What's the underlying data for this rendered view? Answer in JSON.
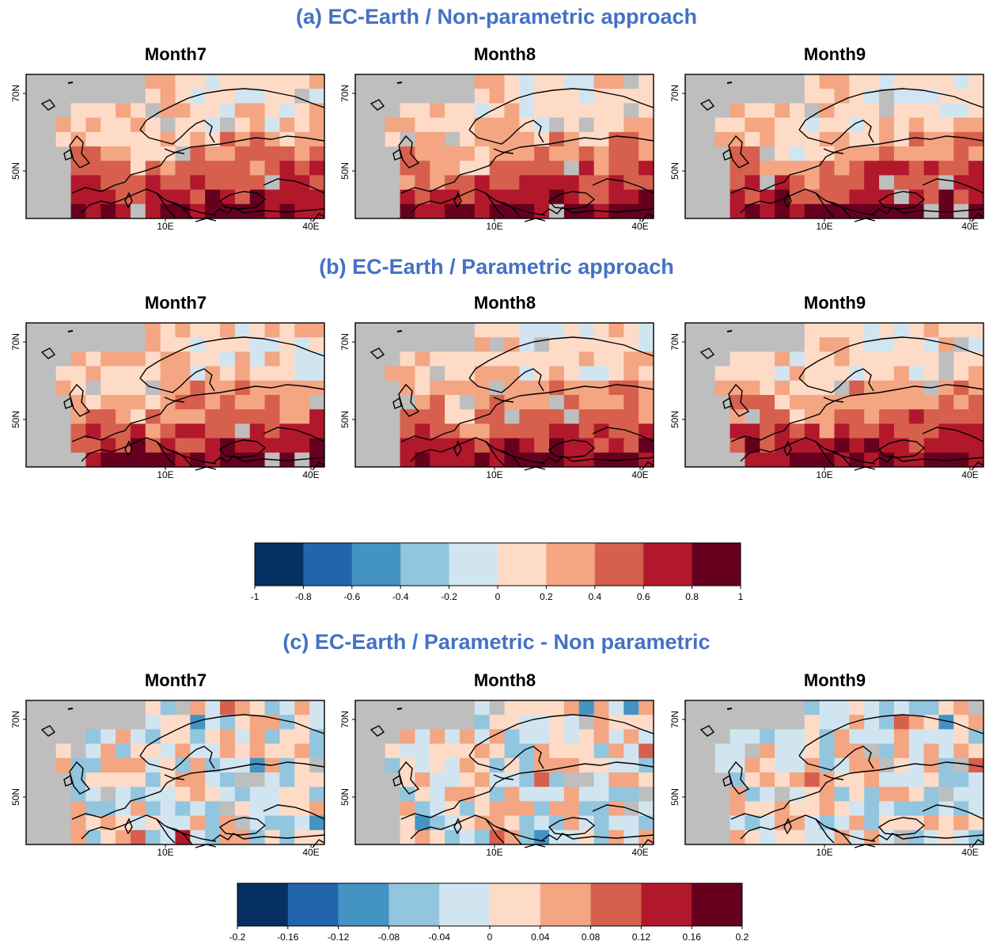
{
  "colors": {
    "title": "#4472c4",
    "land_missing": "#bebebe",
    "coast": "#000000",
    "palette": [
      "#053061",
      "#2166ac",
      "#4393c3",
      "#92c5de",
      "#d1e5f0",
      "#fddbc7",
      "#f4a582",
      "#d6604d",
      "#b2182b",
      "#67001f"
    ]
  },
  "axis_labels": {
    "lat": [
      "70N",
      "50N"
    ],
    "lon": [
      "10E",
      "40E"
    ]
  },
  "sections": [
    {
      "title": "(a) EC-Earth / Non-parametric approach",
      "panels": [
        {
          "title": "Month7"
        },
        {
          "title": "Month8"
        },
        {
          "title": "Month9"
        }
      ]
    },
    {
      "title": "(b) EC-Earth / Parametric approach",
      "panels": [
        {
          "title": "Month7"
        },
        {
          "title": "Month8"
        },
        {
          "title": "Month9"
        }
      ]
    },
    {
      "title": "(c) EC-Earth / Parametric - Non parametric",
      "panels": [
        {
          "title": "Month7"
        },
        {
          "title": "Month8"
        },
        {
          "title": "Month9"
        }
      ]
    }
  ],
  "colorbars": [
    {
      "ticks": [
        "-1",
        "-0.8",
        "-0.6",
        "-0.4",
        "-0.2",
        "0",
        "0.2",
        "0.4",
        "0.6",
        "0.8",
        "1"
      ]
    },
    {
      "ticks": [
        "-0.2",
        "-0.16",
        "-0.12",
        "-0.08",
        "-0.04",
        "0",
        "0.04",
        "0.08",
        "0.12",
        "0.16",
        "0.2"
      ]
    }
  ]
}
